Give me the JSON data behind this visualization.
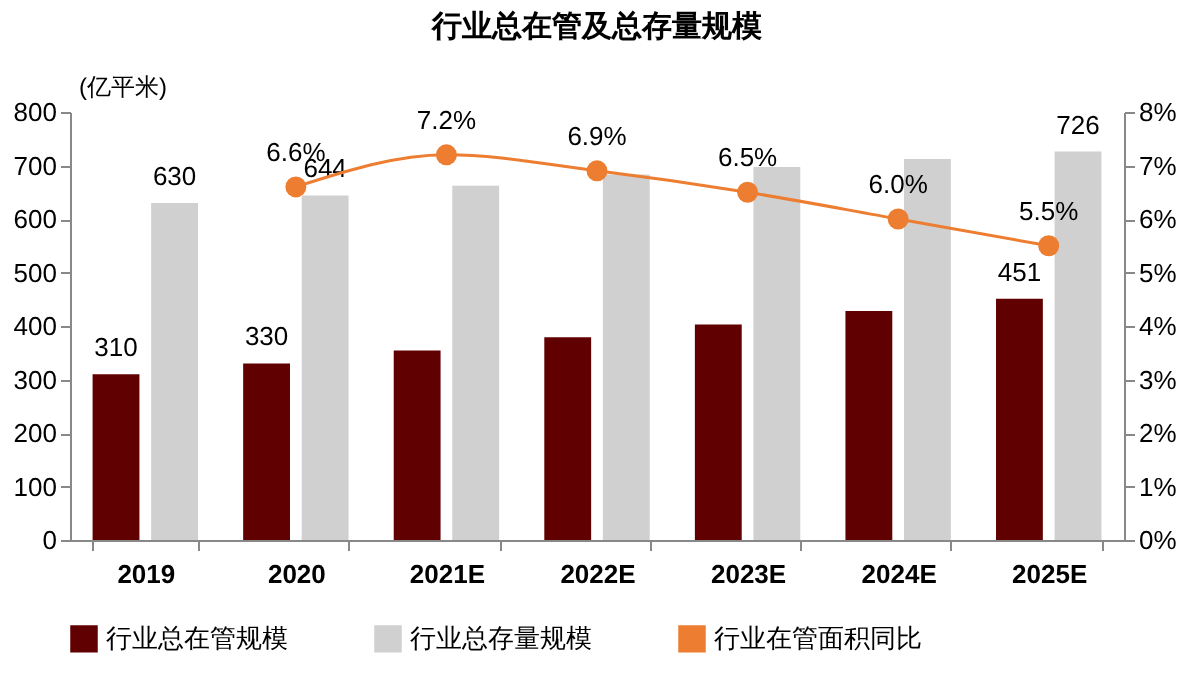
{
  "chart_data": {
    "type": "bar",
    "title": "行业总在管及总存量规模",
    "ylabel": "(亿平米)",
    "categories": [
      "2019",
      "2020",
      "2021E",
      "2022E",
      "2023E",
      "2024E",
      "2025E"
    ],
    "series": [
      {
        "name": "行业总在管规模",
        "color": "#600000",
        "values": [
          310,
          330,
          354,
          379,
          403,
          428,
          451
        ],
        "value_labels": [
          "310",
          "330",
          null,
          null,
          null,
          null,
          "451"
        ]
      },
      {
        "name": "行业总存量规模",
        "color": "#d0d0d0",
        "values": [
          630,
          644,
          662,
          683,
          697,
          712,
          726
        ],
        "value_labels": [
          "630",
          "644",
          null,
          null,
          null,
          null,
          "726"
        ]
      },
      {
        "name": "行业在管面积同比",
        "type": "line",
        "axis": "y2",
        "color": "#ed7d31",
        "marker": "circle",
        "values": [
          null,
          6.6,
          7.2,
          6.9,
          6.5,
          6.0,
          5.5
        ],
        "value_labels": [
          null,
          "6.6%",
          "7.2%",
          "6.9%",
          "6.5%",
          "6.0%",
          "5.5%"
        ]
      }
    ],
    "ylim": [
      0,
      800
    ],
    "yticks": [
      0,
      100,
      200,
      300,
      400,
      500,
      600,
      700,
      800
    ],
    "y2lim": [
      0,
      8
    ],
    "y2ticks": [
      {
        "value": 0,
        "label": "0%"
      },
      {
        "value": 1,
        "label": "1%"
      },
      {
        "value": 2,
        "label": "2%"
      },
      {
        "value": 3,
        "label": "3%"
      },
      {
        "value": 4,
        "label": "4%"
      },
      {
        "value": 5,
        "label": "5%"
      },
      {
        "value": 6,
        "label": "6%"
      },
      {
        "value": 7,
        "label": "7%"
      },
      {
        "value": 8,
        "label": "8%"
      }
    ],
    "legend": "bottom",
    "grid": false
  }
}
